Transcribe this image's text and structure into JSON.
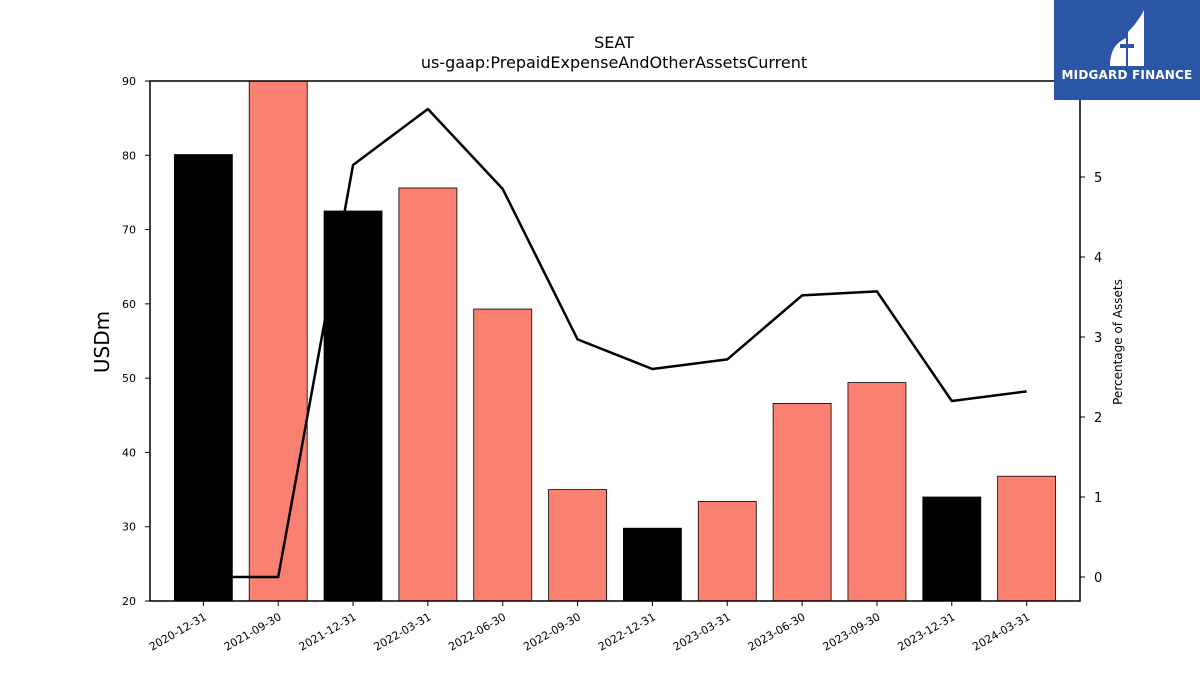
{
  "chart_data": {
    "type": "bar",
    "title": "SEAT",
    "subtitle": "us-gaap:PrepaidExpenseAndOtherAssetsCurrent",
    "ylabel": "USDm",
    "y2label": "Percentage of Assets",
    "ylim": [
      20,
      90
    ],
    "y2lim": [
      -0.3,
      6.2
    ],
    "yticks": [
      "20",
      "30",
      "40",
      "50",
      "60",
      "70",
      "80",
      "90"
    ],
    "y2ticks": [
      "0",
      "1",
      "2",
      "3",
      "4",
      "5"
    ],
    "categories": [
      "2020-12-31",
      "2021-09-30",
      "2021-12-31",
      "2022-03-31",
      "2022-06-30",
      "2022-09-30",
      "2022-12-31",
      "2023-03-31",
      "2023-06-30",
      "2023-09-30",
      "2023-12-31",
      "2024-03-31"
    ],
    "series": [
      {
        "kind": "bar",
        "values": [
          80.1,
          90.0,
          72.5,
          75.6,
          59.3,
          35.0,
          29.8,
          33.4,
          46.6,
          49.4,
          34.0,
          36.8
        ],
        "colors": [
          "#000000",
          "#fa8072",
          "#000000",
          "#fa8072",
          "#fa8072",
          "#fa8072",
          "#000000",
          "#fa8072",
          "#fa8072",
          "#fa8072",
          "#000000",
          "#fa8072"
        ]
      },
      {
        "kind": "line",
        "axis": "right",
        "values": [
          0.0,
          0.0,
          5.15,
          5.85,
          4.85,
          2.97,
          2.6,
          2.72,
          3.52,
          3.57,
          2.2,
          2.32
        ],
        "color": "#000000"
      }
    ],
    "grid": false,
    "legend": "none"
  },
  "branding": {
    "logo_text": "MIDGARD FINANCE",
    "logo_color": "#2b56a8"
  }
}
